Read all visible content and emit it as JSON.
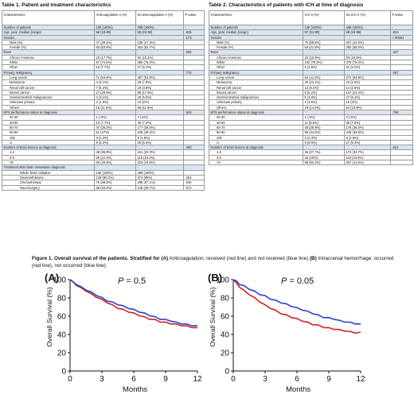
{
  "table1": {
    "title": "Table 1. Patient and treatment characteristics",
    "headers": [
      "Characteristics",
      "Anticoagulation n  (%)",
      "No anticoagulation n  (%)",
      "P value"
    ],
    "rows": [
      {
        "label": "Number of patients",
        "c1": "130 (100%)",
        "c2": "499 (100%)",
        "p": "-",
        "shade": true,
        "indent": 0
      },
      {
        "label": "Age, year, median (range)",
        "c1": "58 (19-86)",
        "c2": "58 (23-90)",
        "p": ".815",
        "shade": true,
        "indent": 0
      },
      {
        "label": "Gender",
        "c1": "",
        "c2": "",
        "p": ".173",
        "shade": true,
        "indent": 0
      },
      {
        "label": "Male (%)",
        "c1": "47 (36.2%)",
        "c2": "236 (47.3%)",
        "p": "",
        "shade": false,
        "indent": 1
      },
      {
        "label": "Female (%)",
        "c1": "83 (63.8%)",
        "c2": "263 (52.7%)",
        "p": "",
        "shade": false,
        "indent": 1
      },
      {
        "label": "Race",
        "c1": "",
        "c2": "",
        "p": ".534",
        "shade": true,
        "indent": 0
      },
      {
        "label": "African American",
        "c1": "23 (17.7%)",
        "c2": "92 (18.4%)",
        "p": "",
        "shade": false,
        "indent": 1
      },
      {
        "label": "White",
        "c1": "97 (74.6%)",
        "c2": "380 (76.2%)",
        "p": "",
        "shade": false,
        "indent": 1
      },
      {
        "label": "Other",
        "c1": "10 (7.7%)",
        "c2": "27 (5.4%)",
        "p": "",
        "shade": false,
        "indent": 1
      },
      {
        "label": "Primary malignancy",
        "c1": "",
        "c2": "",
        "p": ".776",
        "shade": true,
        "indent": 0
      },
      {
        "label": "Lung cancer",
        "c1": "71 (54.6%)",
        "c2": "257 (51.5%)",
        "p": "",
        "shade": false,
        "indent": 1
      },
      {
        "label": "Melanoma",
        "c1": "4 (3.1%)",
        "c2": "39 (7.8%)",
        "p": "",
        "shade": false,
        "indent": 1
      },
      {
        "label": "Renal cell cancer",
        "c1": "7 (5.4%)",
        "c2": "19 (3.8%)",
        "p": "",
        "shade": false,
        "indent": 1
      },
      {
        "label": "Breast cancer",
        "c1": "27 (20.8%)",
        "c2": "88 (17.6%)",
        "p": "",
        "shade": false,
        "indent": 1
      },
      {
        "label": "Gastrointestinal malignancies",
        "c1": "4 (3.1%)",
        "c2": "28 (5.6%)",
        "p": "",
        "shade": false,
        "indent": 1
      },
      {
        "label": "Unknown primary",
        "c1": "2 (1.5%)",
        "c2": "10 (2%)",
        "p": "",
        "shade": false,
        "indent": 1
      },
      {
        "label": "Others",
        "c1": "15 (11.5%)",
        "c2": "58 (11.6%)",
        "p": "",
        "shade": false,
        "indent": 1
      },
      {
        "label": "KPS performance status at diagnosis",
        "c1": "",
        "c2": "",
        "p": ".949",
        "shade": true,
        "indent": 0
      },
      {
        "label": "20-30",
        "c1": "1 (.8%)",
        "c2": "3 (.6%)",
        "p": "",
        "shade": false,
        "indent": 1
      },
      {
        "label": "40-50",
        "c1": "10 (7.7%)",
        "c2": "36 (7.2%)",
        "p": "",
        "shade": false,
        "indent": 1
      },
      {
        "label": "60-70",
        "c1": "47 (36.2%)",
        "c2": "177 (35.5%)",
        "p": "",
        "shade": false,
        "indent": 1
      },
      {
        "label": "80-90",
        "c1": "61 (47%)",
        "c2": "246 (49.3%)",
        "p": "",
        "shade": false,
        "indent": 1
      },
      {
        "label": "100",
        "c1": "3 (2.3%)",
        "c2": "9 (1.8%)",
        "p": "",
        "shade": false,
        "indent": 1
      },
      {
        "label": "U",
        "c1": "8 (6.2%)",
        "c2": "28 (5.6%)",
        "p": "",
        "shade": false,
        "indent": 1
      },
      {
        "label": "Number of brain lesions at diagnosis",
        "c1": "",
        "c2": "",
        "p": ".403",
        "shade": true,
        "indent": 0
      },
      {
        "label": "1-2",
        "c1": "48 (36.9%)",
        "c2": "161 (32.3%)",
        "p": "",
        "shade": false,
        "indent": 1
      },
      {
        "label": "3-5",
        "c1": "29 (22.3%)",
        "c2": "116 (23.2%)",
        "p": "",
        "shade": false,
        "indent": 1
      },
      {
        "label": ">5",
        "c1": "53 (40.8%)",
        "c2": "222 (44.5%)",
        "p": "",
        "shade": false,
        "indent": 1
      },
      {
        "label": "Treatment after brain metastasis diagnosis",
        "c1": "",
        "c2": "",
        "p": "",
        "shade": true,
        "indent": 0
      },
      {
        "label": "Whole brain radiation",
        "c1": "130 (100%)",
        "c2": "499 (100%)",
        "p": "-",
        "shade": false,
        "indent": 2
      },
      {
        "label": "Dexamethasone",
        "c1": "125 (96.2%)",
        "c2": "474 (95%)",
        "p": ".264",
        "shade": false,
        "indent": 2
      },
      {
        "label": "Chemotherapy",
        "c1": "76 (58.5%)",
        "c2": "285 (57.1%)",
        "p": ".046",
        "shade": false,
        "indent": 2
      },
      {
        "label": "Neurosurgery",
        "c1": "38 (29.2%)",
        "c2": "148 (29.7%)",
        "p": ".973",
        "shade": false,
        "indent": 2
      }
    ]
  },
  "table2": {
    "title": "Table 2. Characteristics  of patients with ICH at time of diagnosis",
    "headers": [
      "Characteristics",
      "ICH n  (%)",
      "No ICH n  (%)",
      "P value"
    ],
    "rows": [
      {
        "label": "Number of patients",
        "c1": "130 (100%)",
        "c2": "499 (100%)",
        "p": "-",
        "shade": true,
        "indent": 0
      },
      {
        "label": "Age, year, median (range)",
        "c1": "57 (31-90)",
        "c2": "58 (19-86)",
        "p": ".815",
        "shade": true,
        "indent": 0
      },
      {
        "label": "Gender",
        "c1": "",
        "c2": "",
        "p": "< 00001",
        "shade": true,
        "indent": 0
      },
      {
        "label": "Male (%)",
        "c1": "76 (58.5%)",
        "c2": "207 (41.5%)",
        "p": "",
        "shade": false,
        "indent": 1
      },
      {
        "label": "Female (%)",
        "c1": "54 (41.5%)",
        "c2": "292 (58.5%)",
        "p": "",
        "shade": false,
        "indent": 1
      },
      {
        "label": "Race",
        "c1": "",
        "c2": "",
        "p": ".347",
        "shade": true,
        "indent": 0
      },
      {
        "label": "African American",
        "c1": "22 (16.9%)",
        "c2": "93 (18.6%)",
        "p": "",
        "shade": false,
        "indent": 1
      },
      {
        "label": "White",
        "c1": "102 (78.5%)",
        "c2": "375 (75.2%)",
        "p": "",
        "shade": false,
        "indent": 1
      },
      {
        "label": "Other",
        "c1": "6 (4.6%)",
        "c2": "31 (6.2%)",
        "p": "",
        "shade": false,
        "indent": 1
      },
      {
        "label": "Primary malignancy",
        "c1": "",
        "c2": "",
        "p": ".007",
        "shade": true,
        "indent": 0
      },
      {
        "label": "Lung cancer",
        "c1": "54 (41.5%)",
        "c2": "274 (54.9%)",
        "p": "",
        "shade": false,
        "indent": 1
      },
      {
        "label": "Melanoma",
        "c1": "30 (23.1%)",
        "c2": "13 (2.6%)",
        "p": "",
        "shade": false,
        "indent": 1
      },
      {
        "label": "Renal cell cancer",
        "c1": "12 (9.2%)",
        "c2": "14 (2.8%)",
        "p": "",
        "shade": false,
        "indent": 1
      },
      {
        "label": "Breast cancer",
        "c1": "8 (6.2%)",
        "c2": "107 (21.4%)",
        "p": "",
        "shade": false,
        "indent": 1
      },
      {
        "label": "Gastrointestinal malignancies",
        "c1": "5 (3.8%)",
        "c2": "27 (5.4%)",
        "p": "",
        "shade": false,
        "indent": 1
      },
      {
        "label": "Unknown primary",
        "c1": "2 (1.5%)",
        "c2": "10 (2%)",
        "p": "",
        "shade": false,
        "indent": 1
      },
      {
        "label": "Others",
        "c1": "19 (14.6%)",
        "c2": "54 (10.8%)",
        "p": "",
        "shade": false,
        "indent": 1
      },
      {
        "label": "KPS performance status at diagnosis",
        "c1": "",
        "c2": "",
        "p": ".798",
        "shade": true,
        "indent": 0
      },
      {
        "label": "20-30",
        "c1": "1 (.8%)",
        "c2": "3 (.6%)",
        "p": "",
        "shade": false,
        "indent": 1
      },
      {
        "label": "40-50",
        "c1": "11 (8.5%)",
        "c2": "35 (7.0%)",
        "p": "",
        "shade": false,
        "indent": 1
      },
      {
        "label": "60-70",
        "c1": "48 (36.9%)",
        "c2": "176 (35.3%)",
        "p": "",
        "shade": false,
        "indent": 1
      },
      {
        "label": "80-90",
        "c1": "58 (44.6%)",
        "c2": "249 (49.9%)",
        "p": "",
        "shade": false,
        "indent": 1
      },
      {
        "label": "100",
        "c1": "3 (2.3%)",
        "c2": "9 (1.8%)",
        "p": "",
        "shade": false,
        "indent": 1
      },
      {
        "label": "U",
        "c1": "9 (6.9%)",
        "c2": "27 (5.4%)",
        "p": "",
        "shade": false,
        "indent": 1
      },
      {
        "label": "Number of brain lesions at diagnosis",
        "c1": "",
        "c2": "",
        "p": ".641",
        "shade": true,
        "indent": 0
      },
      {
        "label": "1-2",
        "c1": "36 (27.7%)",
        "c2": "173 (34.7%)",
        "p": "",
        "shade": false,
        "indent": 1
      },
      {
        "label": "3-5",
        "c1": "26 (20%)",
        "c2": "119 (23.8%)",
        "p": "",
        "shade": false,
        "indent": 1
      },
      {
        "label": ">5",
        "c1": "68 (52.3%)",
        "c2": "207 (41.5%)",
        "p": "",
        "shade": false,
        "indent": 1
      }
    ]
  },
  "figure": {
    "caption_parts": [
      {
        "text": "Figure 1. Overall survival of the patients. Stratified for ",
        "bold": true
      },
      {
        "text": "(A)",
        "bold": true
      },
      {
        "text": " Anticoagulation; received (red line) and not received (blue line) ",
        "bold": false
      },
      {
        "text": "(B)",
        "bold": true
      },
      {
        "text": " Intracranial hemorrhage; occurred (red line), not occurred (blue line).",
        "bold": false
      }
    ],
    "series_colors": {
      "red": "#d81e1e",
      "blue": "#2a3fd6"
    }
  },
  "chart_data": [
    {
      "type": "line",
      "panel_label": "(A)",
      "annotation": "P = 0.5",
      "annotation_var": "P",
      "annotation_rest": " = 0.5",
      "xlabel": "Months",
      "ylabel": "Overall Survival (%)",
      "xlim": [
        0,
        12
      ],
      "ylim": [
        0,
        100
      ],
      "xticks": [
        0,
        3,
        6,
        9,
        12
      ],
      "yticks": [
        0,
        20,
        40,
        60,
        80,
        100
      ],
      "series": [
        {
          "color": "#d81e1e",
          "x": [
            0,
            0.3,
            0.6,
            1,
            1.5,
            2,
            2.5,
            3,
            3.5,
            4,
            4.5,
            5,
            5.5,
            6,
            6.5,
            7,
            7.5,
            8,
            8.5,
            9,
            9.5,
            10,
            10.5,
            11,
            11.5,
            12
          ],
          "y": [
            100,
            97,
            94,
            91,
            88,
            84,
            81,
            78,
            75,
            72,
            69,
            67,
            65,
            63,
            61,
            59,
            57,
            56,
            54,
            53,
            52,
            51,
            50,
            49,
            48,
            47
          ]
        },
        {
          "color": "#2a3fd6",
          "x": [
            0,
            0.3,
            0.6,
            1,
            1.5,
            2,
            2.5,
            3,
            3.5,
            4,
            4.5,
            5,
            5.5,
            6,
            6.5,
            7,
            7.5,
            8,
            8.5,
            9,
            9.5,
            10,
            10.5,
            11,
            11.5,
            12
          ],
          "y": [
            100,
            97,
            95,
            92,
            89,
            86,
            83,
            80,
            77,
            75,
            73,
            71,
            69,
            67,
            65,
            63,
            61,
            59,
            57,
            56,
            55,
            53,
            52,
            51,
            50,
            49
          ]
        }
      ]
    },
    {
      "type": "line",
      "panel_label": "(B)",
      "annotation": "P = 0.05",
      "annotation_var": "P",
      "annotation_rest": " = 0.05",
      "xlabel": "Months",
      "ylabel": "Overall Survival (%)",
      "xlim": [
        0,
        12
      ],
      "ylim": [
        0,
        100
      ],
      "xticks": [
        0,
        3,
        6,
        9,
        12
      ],
      "yticks": [
        0,
        20,
        40,
        60,
        80,
        100
      ],
      "series": [
        {
          "color": "#d81e1e",
          "x": [
            0,
            0.3,
            0.6,
            1,
            1.5,
            2,
            2.5,
            3,
            3.5,
            4,
            4.5,
            5,
            5.5,
            6,
            6.5,
            7,
            7.5,
            8,
            8.5,
            9,
            9.5,
            10,
            10.5,
            11,
            11.5,
            12
          ],
          "y": [
            100,
            96,
            92,
            88,
            84,
            80,
            76,
            72,
            69,
            66,
            63,
            61,
            59,
            57,
            55,
            53,
            51,
            50,
            48,
            47,
            46,
            45,
            44,
            43,
            42,
            42
          ]
        },
        {
          "color": "#2a3fd6",
          "x": [
            0,
            0.3,
            0.6,
            1,
            1.5,
            2,
            2.5,
            3,
            3.5,
            4,
            4.5,
            5,
            5.5,
            6,
            6.5,
            7,
            7.5,
            8,
            8.5,
            9,
            9.5,
            10,
            10.5,
            11,
            11.5,
            12
          ],
          "y": [
            100,
            98,
            95,
            93,
            90,
            87,
            84,
            82,
            79,
            77,
            75,
            73,
            71,
            69,
            67,
            65,
            63,
            61,
            59,
            58,
            57,
            55,
            54,
            53,
            52,
            51
          ]
        }
      ]
    }
  ]
}
